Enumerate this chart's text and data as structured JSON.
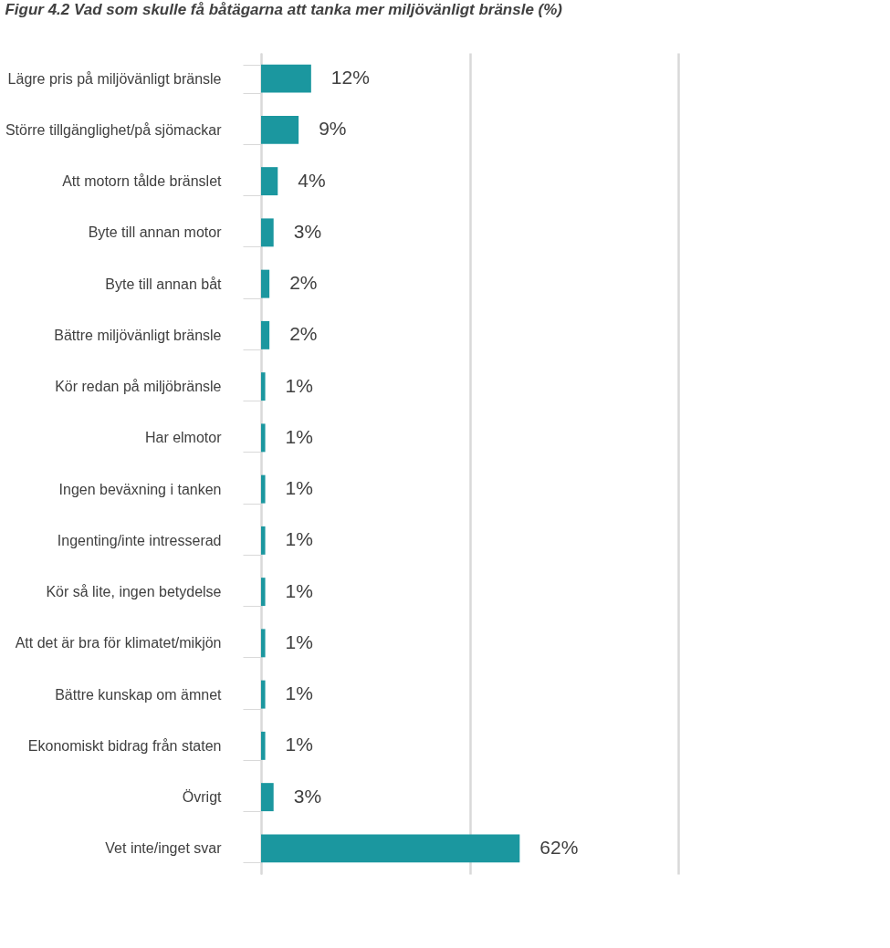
{
  "chart_data": {
    "type": "bar",
    "orientation": "horizontal",
    "title": "Figur 4.2 Vad som skulle få båtägarna att tanka mer miljövänligt bränsle (%)",
    "categories": [
      "Lägre pris på miljövänligt bränsle",
      "Större tillgänglighet/på sjömackar",
      "Att motorn tålde bränslet",
      "Byte till annan motor",
      "Byte till annan båt",
      "Bättre miljövänligt bränsle",
      "Kör redan på miljöbränsle",
      "Har elmotor",
      "Ingen beväxning i tanken",
      "Ingenting/inte intresserad",
      "Kör så lite, ingen betydelse",
      "Att det är bra för klimatet/mikjön",
      "Bättre kunskap om ämnet",
      "Ekonomiskt bidrag från staten",
      "Övrigt",
      "Vet inte/inget svar"
    ],
    "values": [
      12,
      9,
      4,
      3,
      2,
      2,
      1,
      1,
      1,
      1,
      1,
      1,
      1,
      1,
      3,
      62
    ],
    "value_labels": [
      "12%",
      "9%",
      "4%",
      "3%",
      "2%",
      "2%",
      "1%",
      "1%",
      "1%",
      "1%",
      "1%",
      "1%",
      "1%",
      "1%",
      "3%",
      "62%"
    ],
    "color": "#1b979f",
    "xlim": [
      0,
      100
    ],
    "xticks": [
      {
        "value": 0,
        "label": null
      },
      {
        "value": 50,
        "label": null
      },
      {
        "value": 100,
        "label": null
      }
    ],
    "grid": "x",
    "tick_labels": "y"
  }
}
